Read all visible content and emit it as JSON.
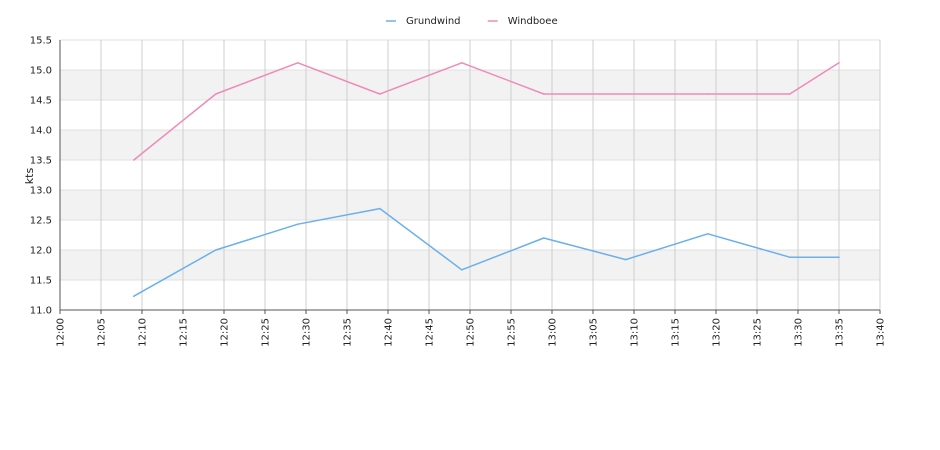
{
  "chart_data": {
    "type": "line",
    "title": "",
    "xlabel": "",
    "ylabel": "kts",
    "x_ticks": [
      "12:00",
      "12:05",
      "12:10",
      "12:15",
      "12:20",
      "12:25",
      "12:30",
      "12:35",
      "12:40",
      "12:45",
      "12:50",
      "12:55",
      "13:00",
      "13:05",
      "13:10",
      "13:15",
      "13:20",
      "13:25",
      "13:30",
      "13:35",
      "13:40"
    ],
    "y_ticks": [
      "11.0",
      "11.5",
      "12.0",
      "12.5",
      "13.0",
      "13.5",
      "14.0",
      "14.5",
      "15.0",
      "15.5"
    ],
    "xlim": [
      "12:00",
      "13:40"
    ],
    "ylim": [
      11.0,
      15.5
    ],
    "grid": true,
    "legend_position": "top-center",
    "series": [
      {
        "name": "Grundwind",
        "color": "#6ab0ea",
        "x": [
          "12:09",
          "12:19",
          "12:29",
          "12:39",
          "12:49",
          "12:59",
          "13:09",
          "13:19",
          "13:29",
          "13:35"
        ],
        "values": [
          11.23,
          12.0,
          12.43,
          12.69,
          11.67,
          12.2,
          11.84,
          12.27,
          11.88,
          11.88
        ]
      },
      {
        "name": "Windboee",
        "color": "#f08ab8",
        "x": [
          "12:09",
          "12:19",
          "12:29",
          "12:39",
          "12:49",
          "12:59",
          "13:09",
          "13:19",
          "13:29",
          "13:35"
        ],
        "values": [
          13.5,
          14.6,
          15.12,
          14.6,
          15.12,
          14.6,
          14.6,
          14.6,
          14.6,
          15.12
        ]
      }
    ]
  }
}
